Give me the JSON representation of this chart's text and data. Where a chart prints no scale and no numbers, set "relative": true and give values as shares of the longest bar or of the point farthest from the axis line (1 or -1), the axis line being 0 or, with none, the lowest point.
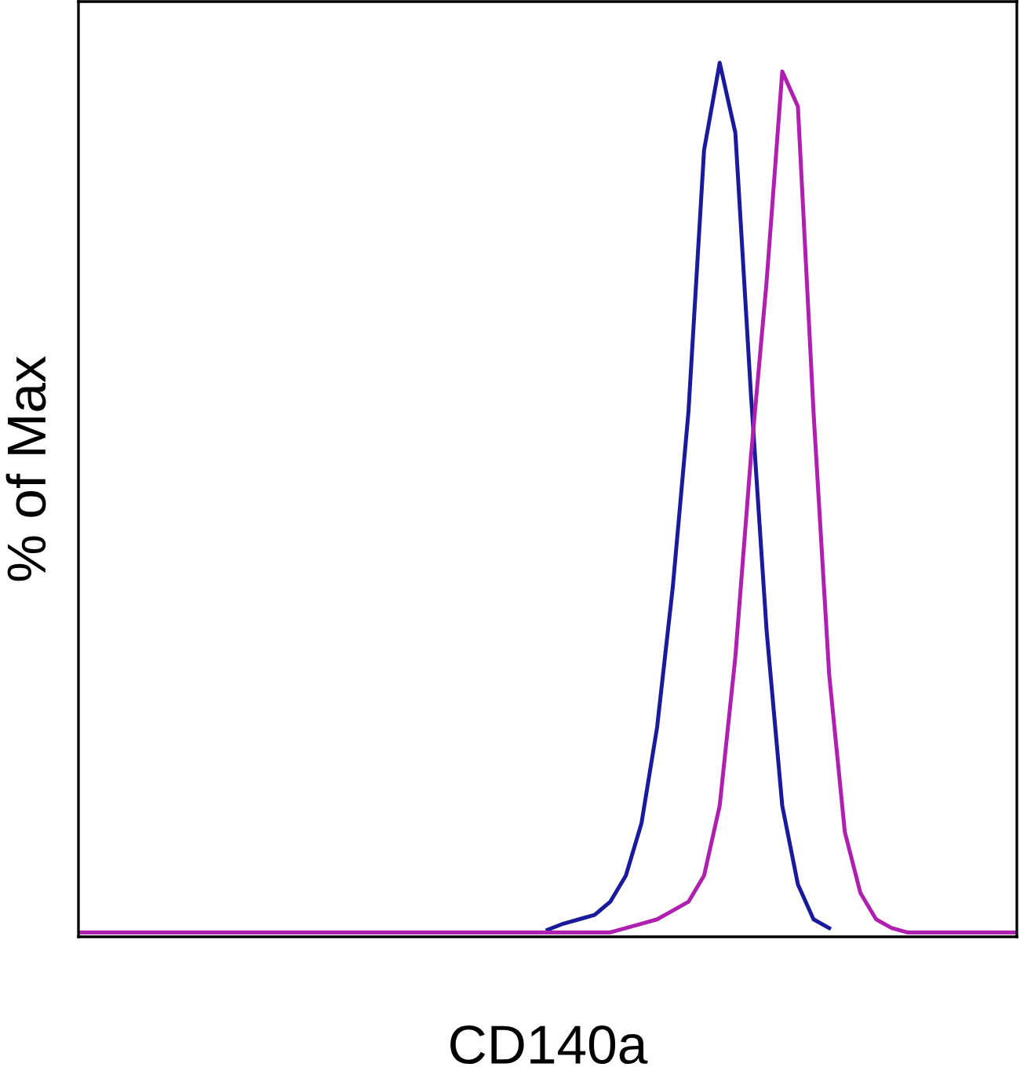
{
  "chart_data": {
    "type": "line",
    "relative": true,
    "xlabel": "CD140a",
    "ylabel": "% of Max",
    "grid": false,
    "legend": false,
    "marker": "none",
    "line_style": "solid",
    "tick_labels": false,
    "categories": [
      null,
      null,
      null,
      null,
      null,
      null,
      null,
      null,
      null,
      null,
      null,
      null,
      null,
      null,
      null,
      null,
      null,
      null,
      null,
      null,
      null,
      null,
      null,
      null,
      null,
      null,
      null,
      null,
      null,
      null,
      null,
      null,
      null,
      null,
      null,
      null,
      null,
      null,
      null,
      null,
      null,
      null,
      null,
      null,
      null,
      null,
      null,
      null,
      null,
      null,
      null,
      null,
      null,
      null,
      null,
      null,
      null,
      null,
      null,
      null,
      null
    ],
    "series": [
      {
        "color": "#1a1a9c",
        "values": [
          null,
          null,
          null,
          null,
          null,
          null,
          null,
          null,
          null,
          null,
          null,
          null,
          null,
          null,
          null,
          null,
          null,
          null,
          null,
          null,
          null,
          null,
          null,
          null,
          null,
          null,
          null,
          null,
          null,
          null,
          0.008,
          0.015,
          0.02,
          0.025,
          0.04,
          0.07,
          0.13,
          0.24,
          0.4,
          0.6,
          0.9,
          1.0,
          0.92,
          0.62,
          0.35,
          0.15,
          0.06,
          0.02,
          0.01,
          null,
          null,
          null,
          null,
          null,
          null,
          null,
          null,
          null,
          null,
          null,
          null
        ]
      },
      {
        "color": "#b020b0",
        "values": [
          0.005,
          0.005,
          0.005,
          0.005,
          0.005,
          0.005,
          0.005,
          0.005,
          0.005,
          0.005,
          0.005,
          0.005,
          0.005,
          0.005,
          0.005,
          0.005,
          0.005,
          0.005,
          0.005,
          0.005,
          0.005,
          0.005,
          0.005,
          0.005,
          0.005,
          0.005,
          0.005,
          0.005,
          0.005,
          0.005,
          0.005,
          0.005,
          0.005,
          0.005,
          0.005,
          0.01,
          0.015,
          0.02,
          0.03,
          0.04,
          0.07,
          0.15,
          0.32,
          0.55,
          0.75,
          0.99,
          0.95,
          0.6,
          0.3,
          0.12,
          0.05,
          0.02,
          0.01,
          0.005,
          0.005,
          0.005,
          0.005,
          0.005,
          0.005,
          0.005,
          0.005
        ]
      }
    ]
  }
}
